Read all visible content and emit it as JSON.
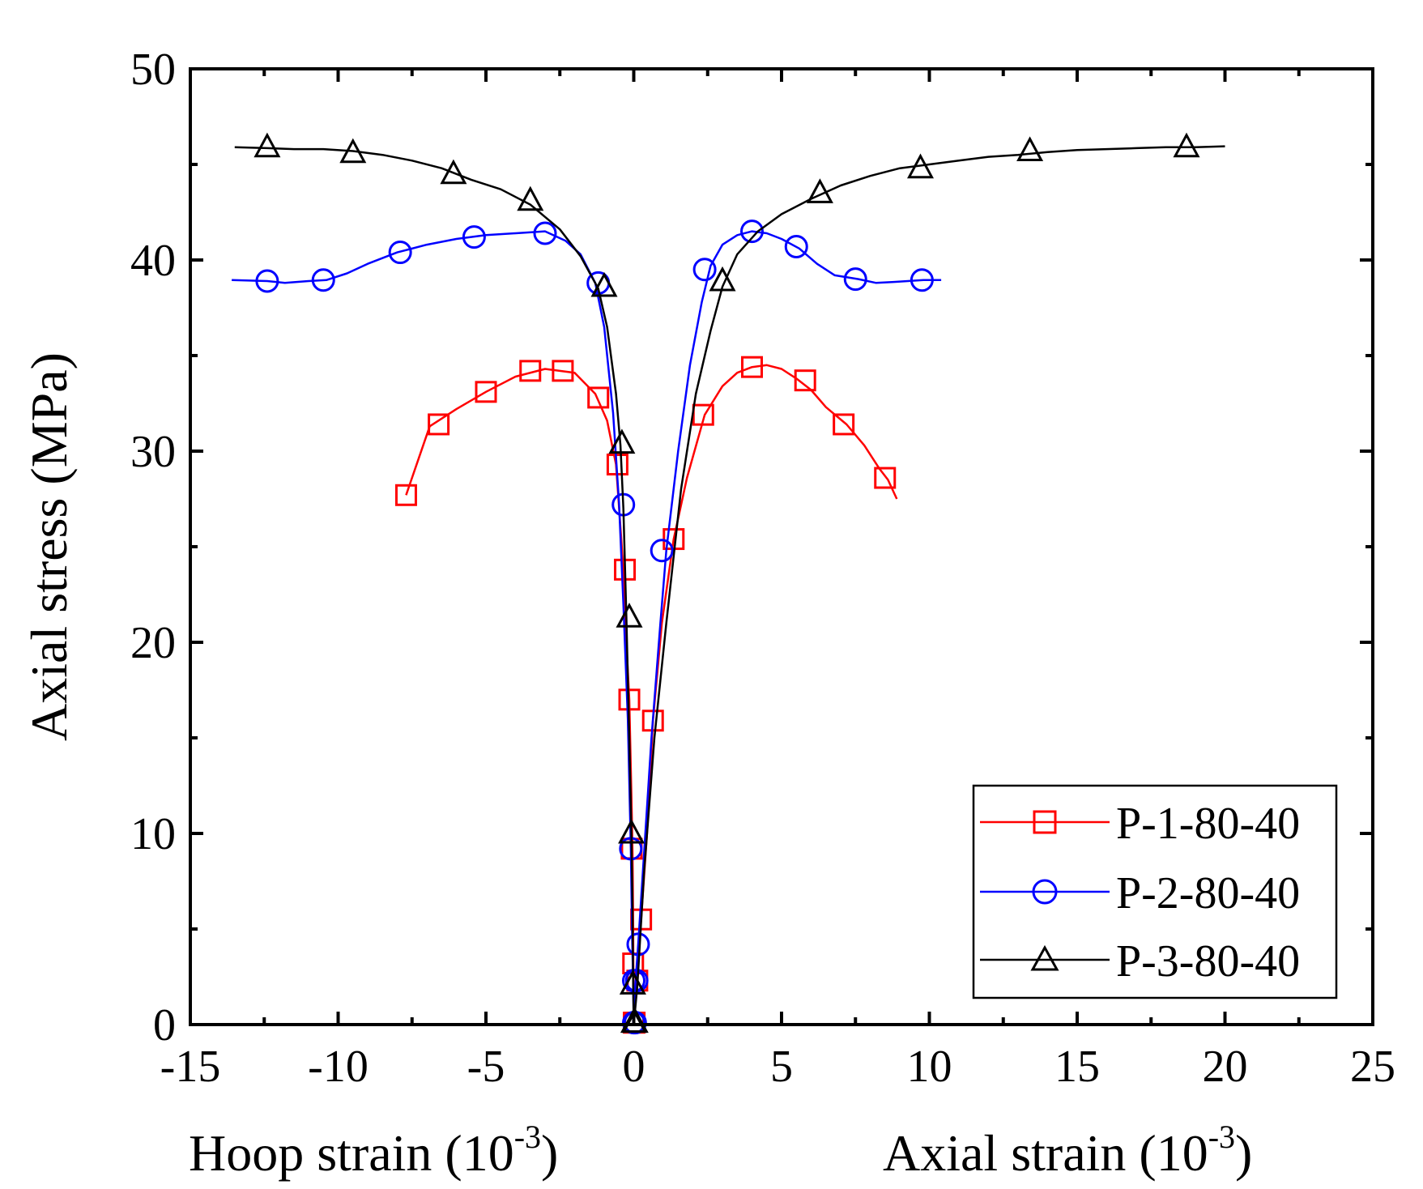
{
  "chart_data": {
    "type": "line",
    "title": "",
    "xlabel_left": "Hoop strain (10",
    "xlabel_right": "Axial strain (10",
    "xlabel_exponent": "-3",
    "xlabel_close": ")",
    "ylabel": "Axial stress (MPa)",
    "xlim": [
      -15,
      25
    ],
    "ylim": [
      0,
      50
    ],
    "x_ticks": [
      -15,
      -10,
      -5,
      0,
      5,
      10,
      15,
      20,
      25
    ],
    "y_ticks": [
      0,
      10,
      20,
      30,
      40,
      50
    ],
    "x_tick_labels": [
      "-15",
      "-10",
      "-5",
      "0",
      "5",
      "10",
      "15",
      "20",
      "25"
    ],
    "y_tick_labels": [
      "0",
      "10",
      "20",
      "30",
      "40",
      "50"
    ],
    "legend_position": "bottom-right",
    "series": [
      {
        "name": "P-1-80-40",
        "color": "#ff0000",
        "marker": "square",
        "hoop": {
          "line": [
            [
              -7.7,
              27.7
            ],
            [
              -7.3,
              29.5
            ],
            [
              -6.9,
              31.3
            ],
            [
              -6.0,
              32.2
            ],
            [
              -5.0,
              33.1
            ],
            [
              -4.0,
              33.9
            ],
            [
              -3.0,
              34.3
            ],
            [
              -2.0,
              34.1
            ],
            [
              -1.3,
              33.0
            ],
            [
              -0.9,
              31.6
            ],
            [
              -0.6,
              29.3
            ],
            [
              -0.45,
              26.0
            ],
            [
              -0.35,
              23.8
            ],
            [
              -0.25,
              20.0
            ],
            [
              -0.15,
              17.0
            ],
            [
              -0.08,
              12.0
            ],
            [
              -0.04,
              9.0
            ],
            [
              -0.02,
              5.0
            ],
            [
              -0.01,
              2.0
            ],
            [
              0,
              0
            ]
          ],
          "markers": [
            [
              -7.7,
              27.7
            ],
            [
              -6.6,
              31.4
            ],
            [
              -5.0,
              33.1
            ],
            [
              -3.5,
              34.2
            ],
            [
              -2.4,
              34.2
            ],
            [
              -1.2,
              32.8
            ],
            [
              -0.55,
              29.3
            ],
            [
              -0.3,
              23.8
            ],
            [
              -0.15,
              17.0
            ],
            [
              -0.07,
              9.2
            ],
            [
              -0.02,
              3.2
            ],
            [
              0,
              0.1
            ]
          ]
        },
        "axial": {
          "line": [
            [
              0,
              0
            ],
            [
              0.08,
              2.3
            ],
            [
              0.25,
              5.5
            ],
            [
              0.45,
              10.0
            ],
            [
              0.65,
              15.9
            ],
            [
              0.95,
              21.0
            ],
            [
              1.35,
              25.4
            ],
            [
              1.8,
              28.6
            ],
            [
              2.4,
              31.9
            ],
            [
              3.0,
              33.4
            ],
            [
              3.5,
              34.1
            ],
            [
              4.0,
              34.4
            ],
            [
              4.5,
              34.5
            ],
            [
              5.0,
              34.3
            ],
            [
              5.5,
              33.8
            ],
            [
              6.0,
              33.2
            ],
            [
              6.5,
              32.3
            ],
            [
              7.2,
              31.4
            ],
            [
              7.8,
              30.3
            ],
            [
              8.3,
              29.1
            ],
            [
              8.6,
              28.5
            ],
            [
              8.9,
              27.5
            ]
          ],
          "markers": [
            [
              0.03,
              0.1
            ],
            [
              0.12,
              2.3
            ],
            [
              0.25,
              5.5
            ],
            [
              0.65,
              15.9
            ],
            [
              1.35,
              25.4
            ],
            [
              2.35,
              31.9
            ],
            [
              4.0,
              34.4
            ],
            [
              5.8,
              33.7
            ],
            [
              7.1,
              31.4
            ],
            [
              8.5,
              28.6
            ]
          ]
        }
      },
      {
        "name": "P-2-80-40",
        "color": "#0000ff",
        "marker": "circle",
        "hoop": {
          "line": [
            [
              -13.6,
              38.95
            ],
            [
              -12.4,
              38.9
            ],
            [
              -11.8,
              38.8
            ],
            [
              -11.0,
              38.9
            ],
            [
              -10.4,
              38.95
            ],
            [
              -9.7,
              39.3
            ],
            [
              -9.0,
              39.8
            ],
            [
              -8.0,
              40.4
            ],
            [
              -7.0,
              40.8
            ],
            [
              -6.0,
              41.1
            ],
            [
              -5.0,
              41.3
            ],
            [
              -4.0,
              41.4
            ],
            [
              -3.0,
              41.5
            ],
            [
              -2.3,
              41.0
            ],
            [
              -1.8,
              40.3
            ],
            [
              -1.3,
              38.8
            ],
            [
              -1.0,
              36.5
            ],
            [
              -0.7,
              32.0
            ],
            [
              -0.5,
              27.3
            ],
            [
              -0.35,
              22.0
            ],
            [
              -0.2,
              16.0
            ],
            [
              -0.1,
              9.2
            ],
            [
              -0.05,
              4.2
            ],
            [
              -0.02,
              2.3
            ],
            [
              0,
              0
            ]
          ],
          "markers": [
            [
              -12.4,
              38.9
            ],
            [
              -10.5,
              38.95
            ],
            [
              -7.9,
              40.4
            ],
            [
              -5.4,
              41.2
            ],
            [
              -3.0,
              41.4
            ],
            [
              -1.2,
              38.8
            ],
            [
              -0.35,
              27.2
            ],
            [
              -0.1,
              9.2
            ],
            [
              0.0,
              2.3
            ],
            [
              0.0,
              0.1
            ]
          ]
        },
        "axial": {
          "line": [
            [
              0,
              0
            ],
            [
              0.05,
              2.0
            ],
            [
              0.15,
              4.2
            ],
            [
              0.35,
              9.0
            ],
            [
              0.6,
              15.0
            ],
            [
              0.9,
              21.0
            ],
            [
              1.1,
              24.8
            ],
            [
              1.5,
              30.0
            ],
            [
              1.9,
              34.5
            ],
            [
              2.3,
              37.8
            ],
            [
              2.6,
              39.7
            ],
            [
              3.0,
              40.8
            ],
            [
              3.5,
              41.3
            ],
            [
              4.0,
              41.5
            ],
            [
              4.5,
              41.4
            ],
            [
              5.0,
              41.1
            ],
            [
              5.6,
              40.6
            ],
            [
              6.2,
              39.8
            ],
            [
              6.8,
              39.2
            ],
            [
              7.6,
              39.0
            ],
            [
              8.2,
              38.8
            ],
            [
              8.8,
              38.85
            ],
            [
              9.8,
              38.95
            ],
            [
              10.4,
              38.95
            ]
          ],
          "markers": [
            [
              0.05,
              0.1
            ],
            [
              0.1,
              2.3
            ],
            [
              0.15,
              4.2
            ],
            [
              0.95,
              24.8
            ],
            [
              2.4,
              39.5
            ],
            [
              4.0,
              41.5
            ],
            [
              5.5,
              40.7
            ],
            [
              7.5,
              39.0
            ],
            [
              9.75,
              38.95
            ]
          ]
        }
      },
      {
        "name": "P-3-80-40",
        "color": "#000000",
        "marker": "triangle",
        "hoop": {
          "line": [
            [
              -13.5,
              45.9
            ],
            [
              -12.4,
              45.85
            ],
            [
              -11.5,
              45.8
            ],
            [
              -10.5,
              45.8
            ],
            [
              -9.5,
              45.7
            ],
            [
              -8.5,
              45.5
            ],
            [
              -7.5,
              45.2
            ],
            [
              -6.5,
              44.8
            ],
            [
              -5.5,
              44.2
            ],
            [
              -4.5,
              43.7
            ],
            [
              -3.5,
              42.9
            ],
            [
              -2.5,
              41.6
            ],
            [
              -1.8,
              40.2
            ],
            [
              -1.2,
              38.5
            ],
            [
              -0.9,
              36.5
            ],
            [
              -0.6,
              33.0
            ],
            [
              -0.45,
              30.3
            ],
            [
              -0.35,
              27.0
            ],
            [
              -0.25,
              21.3
            ],
            [
              -0.15,
              15.0
            ],
            [
              -0.08,
              10.0
            ],
            [
              -0.04,
              6.0
            ],
            [
              -0.02,
              2.0
            ],
            [
              0,
              0
            ]
          ],
          "markers": [
            [
              -12.4,
              45.9
            ],
            [
              -9.5,
              45.6
            ],
            [
              -6.1,
              44.5
            ],
            [
              -3.5,
              43.1
            ],
            [
              -1.0,
              38.6
            ],
            [
              -0.4,
              30.4
            ],
            [
              -0.15,
              21.3
            ],
            [
              -0.08,
              10.0
            ],
            [
              -0.03,
              2.1
            ],
            [
              0,
              0.1
            ]
          ]
        },
        "axial": {
          "line": [
            [
              0,
              0
            ],
            [
              0.12,
              2.0
            ],
            [
              0.35,
              8.0
            ],
            [
              0.7,
              15.0
            ],
            [
              1.1,
              21.0
            ],
            [
              1.6,
              28.0
            ],
            [
              2.1,
              33.0
            ],
            [
              2.6,
              36.3
            ],
            [
              3.0,
              38.6
            ],
            [
              3.5,
              40.3
            ],
            [
              4.2,
              41.5
            ],
            [
              5.0,
              42.4
            ],
            [
              6.0,
              43.2
            ],
            [
              7.0,
              43.9
            ],
            [
              8.0,
              44.4
            ],
            [
              9.0,
              44.8
            ],
            [
              10.0,
              45.0
            ],
            [
              11.0,
              45.2
            ],
            [
              12.0,
              45.4
            ],
            [
              13.0,
              45.5
            ],
            [
              14.0,
              45.65
            ],
            [
              15.0,
              45.75
            ],
            [
              16.0,
              45.8
            ],
            [
              17.0,
              45.85
            ],
            [
              18.0,
              45.9
            ],
            [
              19.0,
              45.9
            ],
            [
              20.0,
              45.95
            ]
          ],
          "markers": [
            [
              0.05,
              0.1
            ],
            [
              3.0,
              38.9
            ],
            [
              6.3,
              43.5
            ],
            [
              9.7,
              44.8
            ],
            [
              13.4,
              45.7
            ],
            [
              18.7,
              45.9
            ]
          ]
        }
      }
    ]
  }
}
